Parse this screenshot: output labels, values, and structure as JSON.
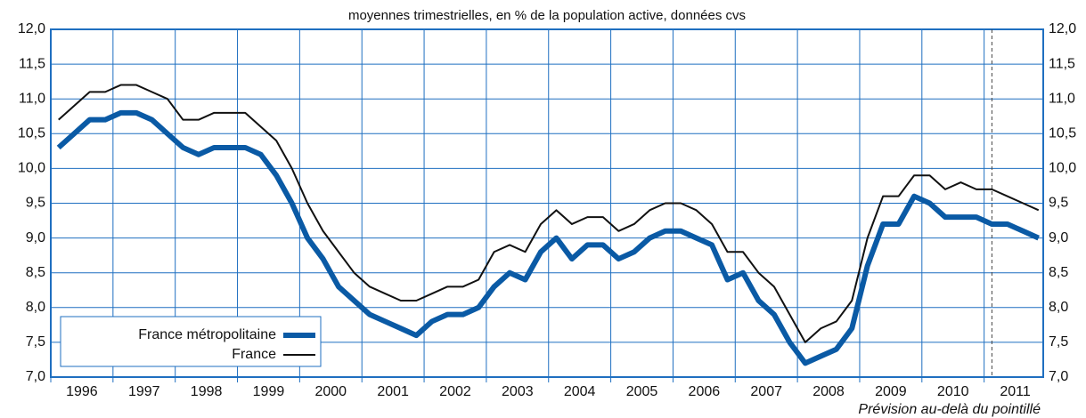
{
  "chart_data": {
    "type": "line",
    "subtitle": "moyennes trimestrielles, en % de la population active, données cvs",
    "annotation": "Prévision au-delà du pointillé",
    "forecast_start": 2011.125,
    "x": [
      1996.125,
      1996.375,
      1996.625,
      1996.875,
      1997.125,
      1997.375,
      1997.625,
      1997.875,
      1998.125,
      1998.375,
      1998.625,
      1998.875,
      1999.125,
      1999.375,
      1999.625,
      1999.875,
      2000.125,
      2000.375,
      2000.625,
      2000.875,
      2001.125,
      2001.375,
      2001.625,
      2001.875,
      2002.125,
      2002.375,
      2002.625,
      2002.875,
      2003.125,
      2003.375,
      2003.625,
      2003.875,
      2004.125,
      2004.375,
      2004.625,
      2004.875,
      2005.125,
      2005.375,
      2005.625,
      2005.875,
      2006.125,
      2006.375,
      2006.625,
      2006.875,
      2007.125,
      2007.375,
      2007.625,
      2007.875,
      2008.125,
      2008.375,
      2008.625,
      2008.875,
      2009.125,
      2009.375,
      2009.625,
      2009.875,
      2010.125,
      2010.375,
      2010.625,
      2010.875,
      2011.125,
      2011.375,
      2011.625,
      2011.875
    ],
    "series": [
      {
        "name": "France métropolitaine",
        "color": "#0a5aa5",
        "width": 6,
        "values": [
          10.3,
          10.5,
          10.7,
          10.7,
          10.8,
          10.8,
          10.7,
          10.5,
          10.3,
          10.2,
          10.3,
          10.3,
          10.3,
          10.2,
          9.9,
          9.5,
          9.0,
          8.7,
          8.3,
          8.1,
          7.9,
          7.8,
          7.7,
          7.6,
          7.8,
          7.9,
          7.9,
          8.0,
          8.3,
          8.5,
          8.4,
          8.8,
          9.0,
          8.7,
          8.9,
          8.9,
          8.7,
          8.8,
          9.0,
          9.1,
          9.1,
          9.0,
          8.9,
          8.4,
          8.5,
          8.1,
          7.9,
          7.5,
          7.2,
          7.3,
          7.4,
          7.7,
          8.6,
          9.2,
          9.2,
          9.6,
          9.5,
          9.3,
          9.3,
          9.3,
          9.2,
          9.2,
          9.1,
          9.0
        ]
      },
      {
        "name": "France",
        "color": "#111111",
        "width": 2,
        "values": [
          10.7,
          10.9,
          11.1,
          11.1,
          11.2,
          11.2,
          11.1,
          11.0,
          10.7,
          10.7,
          10.8,
          10.8,
          10.8,
          10.6,
          10.4,
          10.0,
          9.5,
          9.1,
          8.8,
          8.5,
          8.3,
          8.2,
          8.1,
          8.1,
          8.2,
          8.3,
          8.3,
          8.4,
          8.8,
          8.9,
          8.8,
          9.2,
          9.4,
          9.2,
          9.3,
          9.3,
          9.1,
          9.2,
          9.4,
          9.5,
          9.5,
          9.4,
          9.2,
          8.8,
          8.8,
          8.5,
          8.3,
          7.9,
          7.5,
          7.7,
          7.8,
          8.1,
          9.0,
          9.6,
          9.6,
          9.9,
          9.9,
          9.7,
          9.8,
          9.7,
          9.7,
          9.6,
          9.5,
          9.4
        ]
      }
    ],
    "xlim": [
      1996,
      2011.95
    ],
    "xticks": [
      {
        "value": 1996.5,
        "label": "1996"
      },
      {
        "value": 1997.5,
        "label": "1997"
      },
      {
        "value": 1998.5,
        "label": "1998"
      },
      {
        "value": 1999.5,
        "label": "1999"
      },
      {
        "value": 2000.5,
        "label": "2000"
      },
      {
        "value": 2001.5,
        "label": "2001"
      },
      {
        "value": 2002.5,
        "label": "2002"
      },
      {
        "value": 2003.5,
        "label": "2003"
      },
      {
        "value": 2004.5,
        "label": "2004"
      },
      {
        "value": 2005.5,
        "label": "2005"
      },
      {
        "value": 2006.5,
        "label": "2006"
      },
      {
        "value": 2007.5,
        "label": "2007"
      },
      {
        "value": 2008.5,
        "label": "2008"
      },
      {
        "value": 2009.5,
        "label": "2009"
      },
      {
        "value": 2010.5,
        "label": "2010"
      },
      {
        "value": 2011.5,
        "label": "2011"
      }
    ],
    "ylim": [
      7.0,
      12.0
    ],
    "yticks": [
      {
        "value": 7.0,
        "label": "7,0"
      },
      {
        "value": 7.5,
        "label": "7,5"
      },
      {
        "value": 8.0,
        "label": "8,0"
      },
      {
        "value": 8.5,
        "label": "8,5"
      },
      {
        "value": 9.0,
        "label": "9,0"
      },
      {
        "value": 9.5,
        "label": "9,5"
      },
      {
        "value": 10.0,
        "label": "10,0"
      },
      {
        "value": 10.5,
        "label": "10,5"
      },
      {
        "value": 11.0,
        "label": "11,0"
      },
      {
        "value": 11.5,
        "label": "11,5"
      },
      {
        "value": 12.0,
        "label": "12,0"
      }
    ],
    "grid": true,
    "grid_color": "#1f6fc0",
    "legend": "lower left"
  }
}
